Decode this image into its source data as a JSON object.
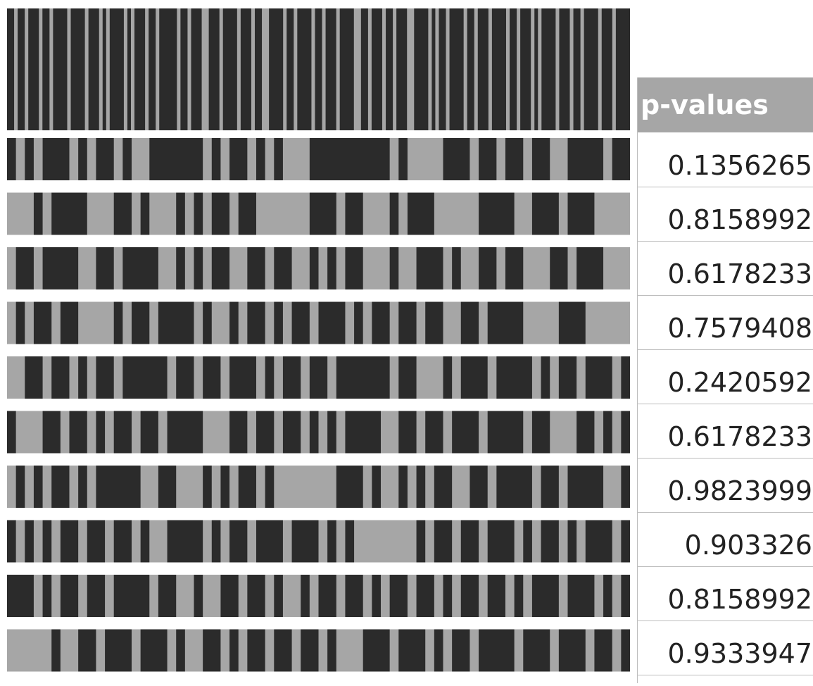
{
  "chart_data": {
    "type": "heatmap",
    "title": "",
    "colors": {
      "on": "#2b2b2b",
      "off": "#a6a6a6"
    },
    "top_bar": [
      1,
      1,
      0,
      1,
      1,
      0,
      1,
      1,
      1,
      0,
      1,
      1,
      0,
      1,
      1,
      1,
      1,
      0,
      1,
      1,
      1,
      1,
      0,
      1,
      1,
      1,
      0,
      1,
      0,
      1,
      1,
      1,
      1,
      0,
      1,
      0,
      1,
      1,
      1,
      0,
      1,
      1,
      0,
      1,
      1,
      1,
      1,
      1,
      0,
      1,
      1,
      0,
      1,
      1,
      1,
      0,
      0,
      1,
      1,
      1,
      0,
      1,
      1,
      1,
      1,
      0,
      1,
      1,
      1,
      0,
      1,
      1,
      0,
      0,
      1,
      1,
      1,
      1,
      0,
      1,
      1,
      0,
      1,
      1,
      1,
      1,
      0,
      1,
      1,
      0,
      1,
      1,
      1,
      0,
      1,
      1,
      1,
      1,
      0,
      0,
      1,
      1,
      0,
      1,
      1,
      1,
      0,
      1,
      1,
      0,
      1,
      1,
      1,
      0,
      0,
      1,
      1,
      1,
      1,
      0,
      1,
      0,
      1,
      1,
      0,
      1,
      1,
      1,
      1,
      0,
      1,
      1,
      0,
      1,
      1,
      1,
      0,
      1,
      1,
      1,
      1,
      0,
      1,
      1,
      0,
      1,
      1,
      1,
      0,
      1,
      0,
      1,
      1,
      1,
      1,
      0,
      1,
      1,
      1,
      0,
      1,
      1,
      0,
      1,
      1,
      1,
      1,
      0,
      1,
      1,
      1,
      0,
      1,
      1,
      1,
      1
    ],
    "rows": [
      {
        "p": "0.1356265",
        "segments": "1010111010110100111111010110101000111111111010000111011011011001111011"
      },
      {
        "p": "0.8158992",
        "segments": "0001011110001101000101011011000000111011000101110000011110011101110000"
      },
      {
        "p": "0.6178233",
        "segments": "0110111100110111100101011001101100101011000100111010011011000110111000"
      },
      {
        "p": "0.7579408",
        "segments": "0101101100001011011110100101101011011101011011011001101111000011100000"
      },
      {
        "p": "0.2420592",
        "segments": "0011011010110111110110110111010110110111111011000101110111101011011101"
      },
      {
        "p": "0.6178233",
        "segments": "1000110110101101101111000110110110101011110011011011101111011000110101"
      },
      {
        "p": "0.9823999",
        "segments": "0101011010111110011000101011010000000111010010101100110111101101111001"
      },
      {
        "p": "0.903326",
        "segments": "1010101101101101001111010110111011101010000000101101101110101101011101"
      },
      {
        "p": "0.8158992",
        "segments": "1110101101101111011001001101101001011011010110110101101101011101110101"
      },
      {
        "p": "0.9333947",
        "segments": "0000010011011101110100110101101101101000111011101011011110111011101101"
      }
    ]
  },
  "table": {
    "header": "p-values",
    "values": [
      "0.1356265",
      "0.8158992",
      "0.6178233",
      "0.7579408",
      "0.2420592",
      "0.6178233",
      "0.9823999",
      "0.903326",
      "0.8158992",
      "0.9333947"
    ]
  }
}
